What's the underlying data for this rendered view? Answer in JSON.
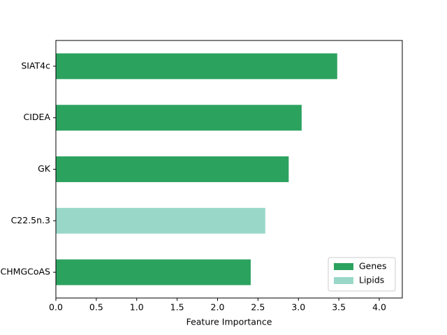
{
  "chart_data": {
    "type": "barh",
    "xlabel": "Feature Importance",
    "categories": [
      "SIAT4c",
      "CIDEA",
      "GK",
      "C22.5n.3",
      "CHMGCoAS"
    ],
    "series": [
      {
        "name": "Genes",
        "color": "#2ca25f",
        "values": [
          3.48,
          3.04,
          2.88,
          null,
          2.41
        ]
      },
      {
        "name": "Lipids",
        "color": "#99d8c9",
        "values": [
          null,
          null,
          null,
          2.59,
          null
        ]
      }
    ],
    "xlim": [
      0,
      4.285
    ],
    "xticks": [
      {
        "value": 0,
        "label": "0.0"
      },
      0.5,
      {
        "value": 1,
        "label": "1.0"
      },
      1.5,
      {
        "value": 2,
        "label": "2.0"
      },
      2.5,
      {
        "value": 3,
        "label": "3.0"
      },
      3.5,
      {
        "value": 4,
        "label": "4.0"
      }
    ],
    "legend": "lower right"
  }
}
